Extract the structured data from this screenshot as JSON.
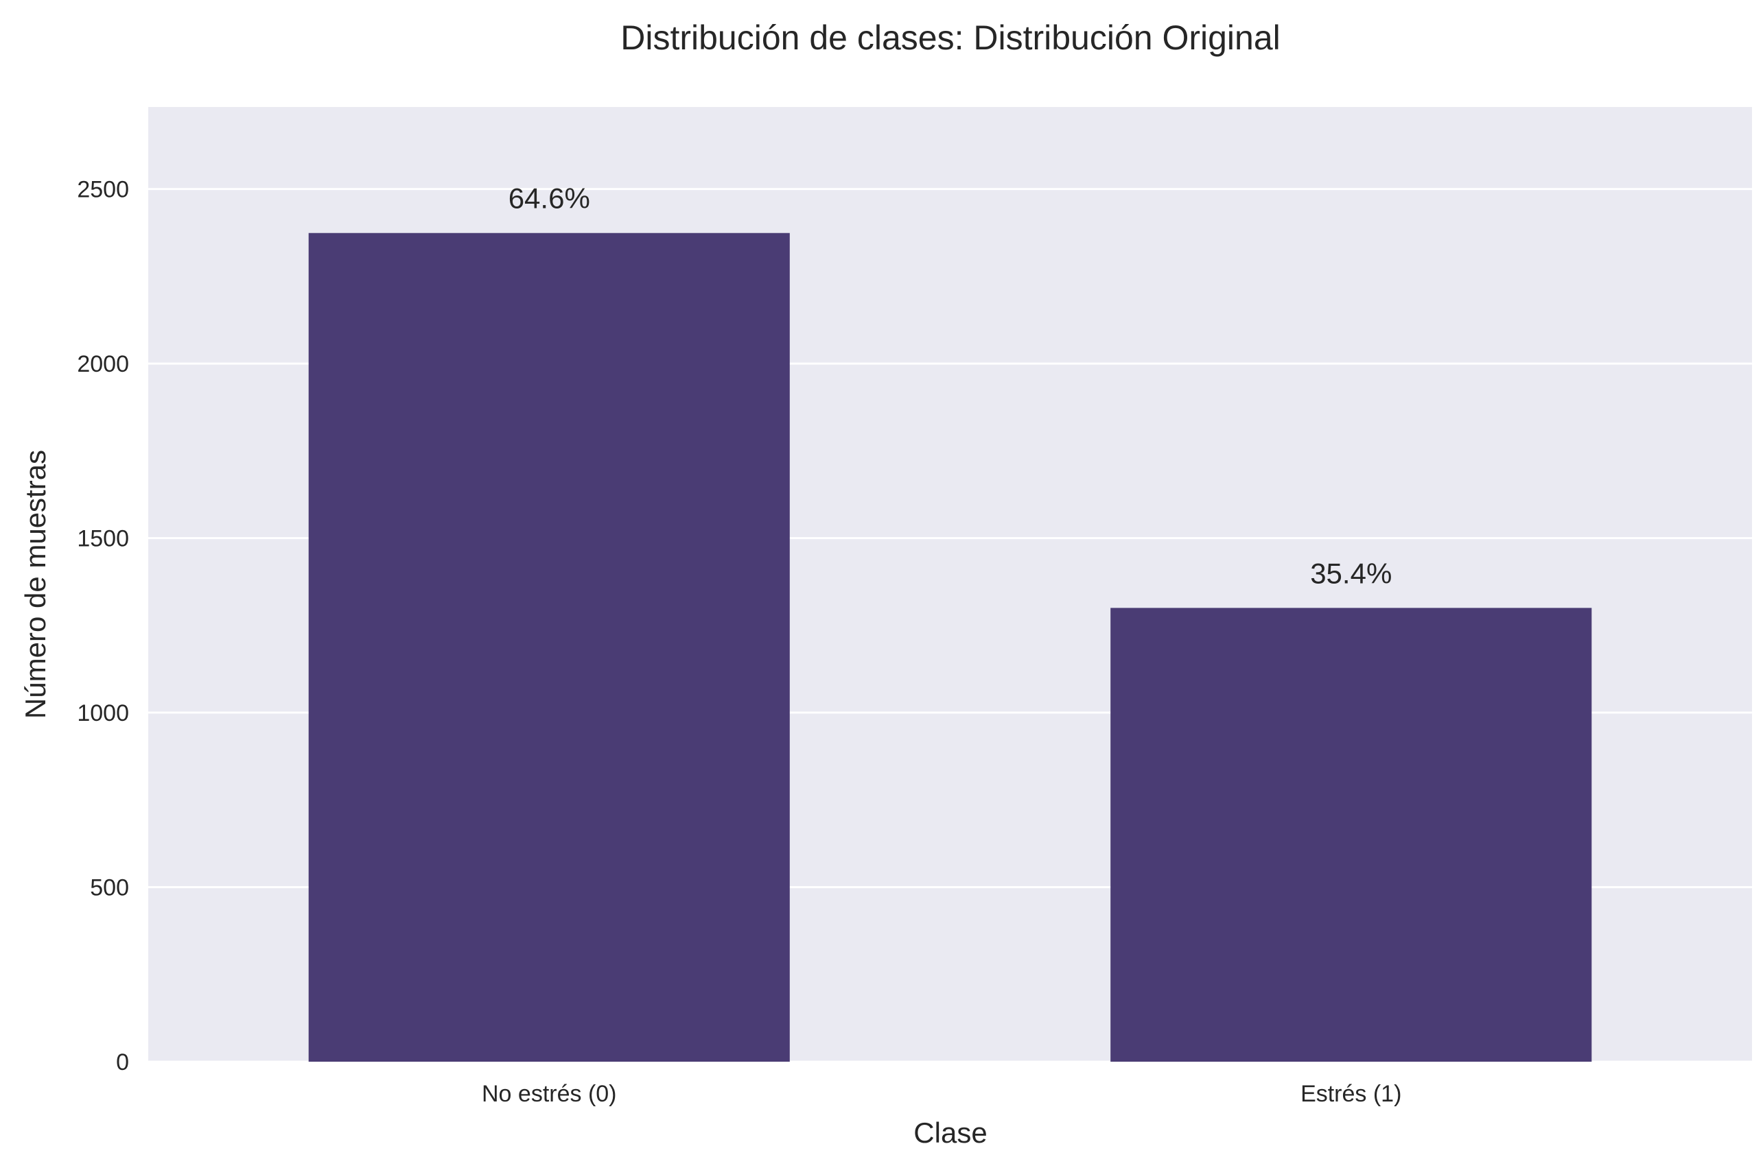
{
  "chart_data": {
    "type": "bar",
    "title": "Distribución de clases: Distribución Original",
    "xlabel": "Clase",
    "ylabel": "Número de muestras",
    "categories": [
      "No estrés (0)",
      "Estrés (1)"
    ],
    "values": [
      2374,
      1300
    ],
    "data_labels": [
      "64.6%",
      "35.4%"
    ],
    "yticks": [
      0,
      500,
      1000,
      1500,
      2000,
      2500
    ],
    "ylim": [
      0,
      2735
    ],
    "grid": true,
    "colors": {
      "bar": "#4a3c74",
      "plot_background": "#eaeaf2",
      "grid": "#ffffff",
      "text": "#262626"
    }
  }
}
